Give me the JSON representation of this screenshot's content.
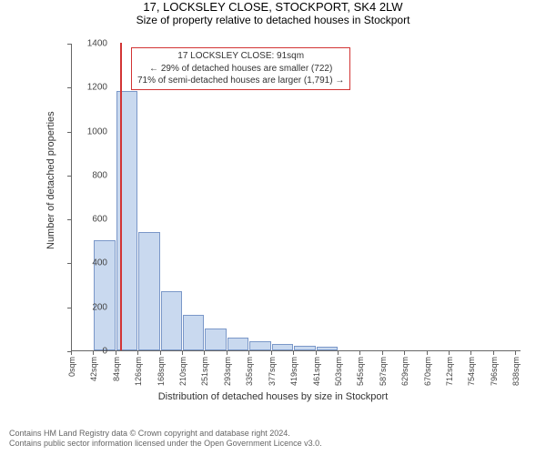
{
  "title": "17, LOCKSLEY CLOSE, STOCKPORT, SK4 2LW",
  "subtitle": "Size of property relative to detached houses in Stockport",
  "chart": {
    "type": "histogram",
    "xlabel": "Distribution of detached houses by size in Stockport",
    "ylabel": "Number of detached properties",
    "ylim": [
      0,
      1400
    ],
    "ytick_step": 200,
    "x_ticks": [
      "0sqm",
      "42sqm",
      "84sqm",
      "126sqm",
      "168sqm",
      "210sqm",
      "251sqm",
      "293sqm",
      "335sqm",
      "377sqm",
      "419sqm",
      "461sqm",
      "503sqm",
      "545sqm",
      "587sqm",
      "629sqm",
      "670sqm",
      "712sqm",
      "754sqm",
      "796sqm",
      "838sqm"
    ],
    "x_max": 850,
    "bin_width": 42,
    "values": [
      0,
      500,
      1180,
      540,
      270,
      160,
      100,
      60,
      40,
      30,
      20,
      15
    ],
    "bar_fill": "#c9d9ef",
    "bar_stroke": "#7a97c8",
    "marker_x": 91,
    "marker_color": "#d23434",
    "background_color": "#ffffff",
    "axis_color": "#666666"
  },
  "annotation": {
    "line1": "17 LOCKSLEY CLOSE: 91sqm",
    "line2": "← 29% of detached houses are smaller (722)",
    "line3": "71% of semi-detached houses are larger (1,791) →",
    "border_color": "#d23434"
  },
  "footer": {
    "line1": "Contains HM Land Registry data © Crown copyright and database right 2024.",
    "line2": "Contains public sector information licensed under the Open Government Licence v3.0."
  }
}
